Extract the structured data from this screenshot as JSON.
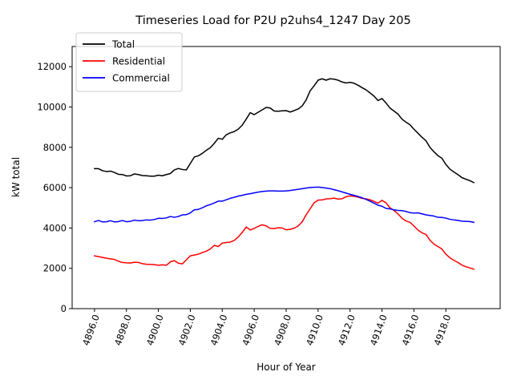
{
  "chart_data": {
    "type": "line",
    "title": "Timeseries Load for P2U p2uhs4_1247  Day 205",
    "xlabel": "Hour of Year",
    "ylabel": "kW total",
    "xlim": [
      4894.6,
      4921.4
    ],
    "ylim": [
      0,
      13000
    ],
    "x_ticks": [
      4896,
      4898,
      4900,
      4902,
      4904,
      4906,
      4908,
      4910,
      4912,
      4914,
      4916,
      4918
    ],
    "x_tick_labels": [
      "4896.0",
      "4898.0",
      "4900.0",
      "4902.0",
      "4904.0",
      "4906.0",
      "4908.0",
      "4910.0",
      "4912.0",
      "4914.0",
      "4916.0",
      "4918.0"
    ],
    "y_ticks": [
      0,
      2000,
      4000,
      6000,
      8000,
      10000,
      12000
    ],
    "y_tick_labels": [
      "0",
      "2000",
      "4000",
      "6000",
      "8000",
      "10000",
      "12000"
    ],
    "grid": false,
    "legend_position": "top-left",
    "series": [
      {
        "name": "Total",
        "color": "#000000",
        "points": [
          [
            4896.0,
            6940
          ],
          [
            4896.25,
            6940
          ],
          [
            4896.5,
            6840
          ],
          [
            4896.75,
            6800
          ],
          [
            4897.0,
            6820
          ],
          [
            4897.25,
            6750
          ],
          [
            4897.5,
            6660
          ],
          [
            4897.75,
            6650
          ],
          [
            4898.0,
            6580
          ],
          [
            4898.25,
            6590
          ],
          [
            4898.5,
            6680
          ],
          [
            4898.75,
            6650
          ],
          [
            4899.0,
            6600
          ],
          [
            4899.25,
            6590
          ],
          [
            4899.5,
            6570
          ],
          [
            4899.75,
            6570
          ],
          [
            4900.0,
            6620
          ],
          [
            4900.25,
            6590
          ],
          [
            4900.5,
            6650
          ],
          [
            4900.75,
            6700
          ],
          [
            4901.0,
            6880
          ],
          [
            4901.25,
            6950
          ],
          [
            4901.5,
            6900
          ],
          [
            4901.75,
            6880
          ],
          [
            4902.0,
            7200
          ],
          [
            4902.25,
            7520
          ],
          [
            4902.5,
            7580
          ],
          [
            4902.75,
            7700
          ],
          [
            4903.0,
            7850
          ],
          [
            4903.25,
            7980
          ],
          [
            4903.5,
            8200
          ],
          [
            4903.75,
            8450
          ],
          [
            4904.0,
            8400
          ],
          [
            4904.25,
            8620
          ],
          [
            4904.5,
            8720
          ],
          [
            4904.75,
            8780
          ],
          [
            4905.0,
            8900
          ],
          [
            4905.25,
            9100
          ],
          [
            4905.5,
            9400
          ],
          [
            4905.75,
            9720
          ],
          [
            4906.0,
            9620
          ],
          [
            4906.25,
            9740
          ],
          [
            4906.5,
            9860
          ],
          [
            4906.75,
            9980
          ],
          [
            4907.0,
            9950
          ],
          [
            4907.25,
            9800
          ],
          [
            4907.5,
            9790
          ],
          [
            4907.75,
            9810
          ],
          [
            4908.0,
            9820
          ],
          [
            4908.25,
            9750
          ],
          [
            4908.5,
            9820
          ],
          [
            4908.75,
            9900
          ],
          [
            4909.0,
            10050
          ],
          [
            4909.25,
            10350
          ],
          [
            4909.5,
            10800
          ],
          [
            4909.75,
            11050
          ],
          [
            4910.0,
            11330
          ],
          [
            4910.25,
            11400
          ],
          [
            4910.5,
            11330
          ],
          [
            4910.75,
            11400
          ],
          [
            4911.0,
            11380
          ],
          [
            4911.25,
            11330
          ],
          [
            4911.5,
            11240
          ],
          [
            4911.75,
            11190
          ],
          [
            4912.0,
            11220
          ],
          [
            4912.25,
            11180
          ],
          [
            4912.5,
            11080
          ],
          [
            4912.75,
            10960
          ],
          [
            4913.0,
            10850
          ],
          [
            4913.25,
            10700
          ],
          [
            4913.5,
            10540
          ],
          [
            4913.75,
            10320
          ],
          [
            4914.0,
            10420
          ],
          [
            4914.25,
            10200
          ],
          [
            4914.5,
            9950
          ],
          [
            4914.75,
            9800
          ],
          [
            4915.0,
            9650
          ],
          [
            4915.25,
            9400
          ],
          [
            4915.5,
            9250
          ],
          [
            4915.75,
            9120
          ],
          [
            4916.0,
            8900
          ],
          [
            4916.25,
            8700
          ],
          [
            4916.5,
            8500
          ],
          [
            4916.75,
            8330
          ],
          [
            4917.0,
            8000
          ],
          [
            4917.25,
            7780
          ],
          [
            4917.5,
            7590
          ],
          [
            4917.75,
            7460
          ],
          [
            4918.0,
            7150
          ],
          [
            4918.25,
            6920
          ],
          [
            4918.5,
            6780
          ],
          [
            4918.75,
            6650
          ],
          [
            4919.0,
            6500
          ],
          [
            4919.25,
            6420
          ],
          [
            4919.5,
            6350
          ],
          [
            4919.75,
            6250
          ]
        ]
      },
      {
        "name": "Residential",
        "color": "#ff0000",
        "points": [
          [
            4896.0,
            2620
          ],
          [
            4896.25,
            2580
          ],
          [
            4896.5,
            2540
          ],
          [
            4896.75,
            2500
          ],
          [
            4897.0,
            2470
          ],
          [
            4897.25,
            2440
          ],
          [
            4897.5,
            2350
          ],
          [
            4897.75,
            2290
          ],
          [
            4898.0,
            2270
          ],
          [
            4898.25,
            2260
          ],
          [
            4898.5,
            2300
          ],
          [
            4898.75,
            2290
          ],
          [
            4899.0,
            2230
          ],
          [
            4899.25,
            2200
          ],
          [
            4899.5,
            2190
          ],
          [
            4899.75,
            2180
          ],
          [
            4900.0,
            2150
          ],
          [
            4900.25,
            2170
          ],
          [
            4900.5,
            2150
          ],
          [
            4900.75,
            2320
          ],
          [
            4901.0,
            2380
          ],
          [
            4901.25,
            2250
          ],
          [
            4901.5,
            2220
          ],
          [
            4901.75,
            2420
          ],
          [
            4902.0,
            2620
          ],
          [
            4902.25,
            2660
          ],
          [
            4902.5,
            2700
          ],
          [
            4902.75,
            2780
          ],
          [
            4903.0,
            2850
          ],
          [
            4903.25,
            2960
          ],
          [
            4903.5,
            3140
          ],
          [
            4903.75,
            3080
          ],
          [
            4904.0,
            3250
          ],
          [
            4904.25,
            3280
          ],
          [
            4904.5,
            3300
          ],
          [
            4904.75,
            3380
          ],
          [
            4905.0,
            3550
          ],
          [
            4905.25,
            3780
          ],
          [
            4905.5,
            4050
          ],
          [
            4905.75,
            3900
          ],
          [
            4906.0,
            3980
          ],
          [
            4906.25,
            4080
          ],
          [
            4906.5,
            4160
          ],
          [
            4906.75,
            4100
          ],
          [
            4907.0,
            3980
          ],
          [
            4907.25,
            3970
          ],
          [
            4907.5,
            4010
          ],
          [
            4907.75,
            4000
          ],
          [
            4908.0,
            3910
          ],
          [
            4908.25,
            3930
          ],
          [
            4908.5,
            3990
          ],
          [
            4908.75,
            4100
          ],
          [
            4909.0,
            4300
          ],
          [
            4909.25,
            4650
          ],
          [
            4909.5,
            4950
          ],
          [
            4909.75,
            5250
          ],
          [
            4910.0,
            5380
          ],
          [
            4910.25,
            5390
          ],
          [
            4910.5,
            5440
          ],
          [
            4910.75,
            5450
          ],
          [
            4911.0,
            5480
          ],
          [
            4911.25,
            5430
          ],
          [
            4911.5,
            5450
          ],
          [
            4911.75,
            5550
          ],
          [
            4912.0,
            5590
          ],
          [
            4912.25,
            5570
          ],
          [
            4912.5,
            5530
          ],
          [
            4912.75,
            5470
          ],
          [
            4913.0,
            5440
          ],
          [
            4913.25,
            5400
          ],
          [
            4913.5,
            5320
          ],
          [
            4913.75,
            5230
          ],
          [
            4914.0,
            5370
          ],
          [
            4914.25,
            5250
          ],
          [
            4914.5,
            5000
          ],
          [
            4914.75,
            4870
          ],
          [
            4915.0,
            4700
          ],
          [
            4915.25,
            4480
          ],
          [
            4915.5,
            4350
          ],
          [
            4915.75,
            4280
          ],
          [
            4916.0,
            4100
          ],
          [
            4916.25,
            3900
          ],
          [
            4916.5,
            3760
          ],
          [
            4916.75,
            3680
          ],
          [
            4917.0,
            3400
          ],
          [
            4917.25,
            3200
          ],
          [
            4917.5,
            3080
          ],
          [
            4917.75,
            2960
          ],
          [
            4918.0,
            2700
          ],
          [
            4918.25,
            2520
          ],
          [
            4918.5,
            2400
          ],
          [
            4918.75,
            2290
          ],
          [
            4919.0,
            2160
          ],
          [
            4919.25,
            2080
          ],
          [
            4919.5,
            2020
          ],
          [
            4919.75,
            1960
          ]
        ]
      },
      {
        "name": "Commercial",
        "color": "#0000ff",
        "points": [
          [
            4896.0,
            4310
          ],
          [
            4896.25,
            4370
          ],
          [
            4896.5,
            4300
          ],
          [
            4896.75,
            4310
          ],
          [
            4897.0,
            4360
          ],
          [
            4897.25,
            4300
          ],
          [
            4897.5,
            4320
          ],
          [
            4897.75,
            4370
          ],
          [
            4898.0,
            4310
          ],
          [
            4898.25,
            4330
          ],
          [
            4898.5,
            4390
          ],
          [
            4898.75,
            4360
          ],
          [
            4899.0,
            4370
          ],
          [
            4899.25,
            4400
          ],
          [
            4899.5,
            4390
          ],
          [
            4899.75,
            4420
          ],
          [
            4900.0,
            4480
          ],
          [
            4900.25,
            4470
          ],
          [
            4900.5,
            4500
          ],
          [
            4900.75,
            4570
          ],
          [
            4901.0,
            4530
          ],
          [
            4901.25,
            4570
          ],
          [
            4901.5,
            4650
          ],
          [
            4901.75,
            4660
          ],
          [
            4902.0,
            4750
          ],
          [
            4902.25,
            4900
          ],
          [
            4902.5,
            4920
          ],
          [
            4902.75,
            5000
          ],
          [
            4903.0,
            5100
          ],
          [
            4903.25,
            5160
          ],
          [
            4903.5,
            5240
          ],
          [
            4903.75,
            5330
          ],
          [
            4904.0,
            5330
          ],
          [
            4904.25,
            5400
          ],
          [
            4904.5,
            5470
          ],
          [
            4904.75,
            5520
          ],
          [
            4905.0,
            5580
          ],
          [
            4905.25,
            5620
          ],
          [
            4905.5,
            5670
          ],
          [
            4905.75,
            5700
          ],
          [
            4906.0,
            5740
          ],
          [
            4906.25,
            5780
          ],
          [
            4906.5,
            5810
          ],
          [
            4906.75,
            5830
          ],
          [
            4907.0,
            5840
          ],
          [
            4907.25,
            5840
          ],
          [
            4907.5,
            5830
          ],
          [
            4907.75,
            5830
          ],
          [
            4908.0,
            5840
          ],
          [
            4908.25,
            5860
          ],
          [
            4908.5,
            5890
          ],
          [
            4908.75,
            5920
          ],
          [
            4909.0,
            5950
          ],
          [
            4909.25,
            5980
          ],
          [
            4909.5,
            6010
          ],
          [
            4909.75,
            6020
          ],
          [
            4910.0,
            6030
          ],
          [
            4910.25,
            6010
          ],
          [
            4910.5,
            5980
          ],
          [
            4910.75,
            5950
          ],
          [
            4911.0,
            5900
          ],
          [
            4911.25,
            5850
          ],
          [
            4911.5,
            5790
          ],
          [
            4911.75,
            5730
          ],
          [
            4912.0,
            5670
          ],
          [
            4912.25,
            5620
          ],
          [
            4912.5,
            5560
          ],
          [
            4912.75,
            5500
          ],
          [
            4913.0,
            5420
          ],
          [
            4913.25,
            5330
          ],
          [
            4913.5,
            5230
          ],
          [
            4913.75,
            5130
          ],
          [
            4914.0,
            5080
          ],
          [
            4914.25,
            4970
          ],
          [
            4914.5,
            4950
          ],
          [
            4914.75,
            4900
          ],
          [
            4915.0,
            4870
          ],
          [
            4915.25,
            4860
          ],
          [
            4915.5,
            4820
          ],
          [
            4915.75,
            4760
          ],
          [
            4916.0,
            4740
          ],
          [
            4916.25,
            4750
          ],
          [
            4916.5,
            4700
          ],
          [
            4916.75,
            4650
          ],
          [
            4917.0,
            4620
          ],
          [
            4917.25,
            4590
          ],
          [
            4917.5,
            4530
          ],
          [
            4917.75,
            4520
          ],
          [
            4918.0,
            4490
          ],
          [
            4918.25,
            4430
          ],
          [
            4918.5,
            4400
          ],
          [
            4918.75,
            4380
          ],
          [
            4919.0,
            4340
          ],
          [
            4919.25,
            4330
          ],
          [
            4919.5,
            4320
          ],
          [
            4919.75,
            4280
          ]
        ]
      }
    ]
  }
}
